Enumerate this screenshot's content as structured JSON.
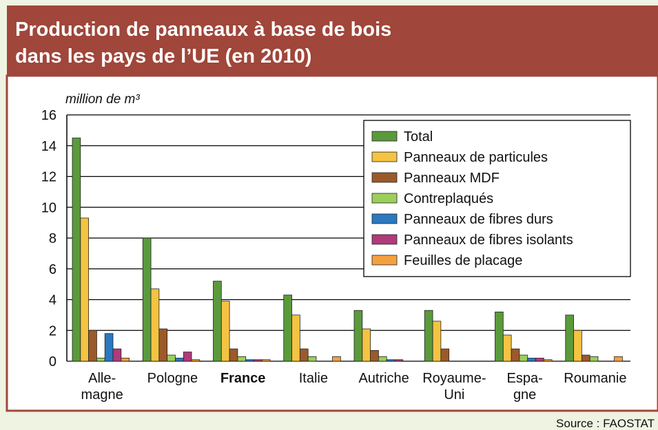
{
  "chart_data": {
    "type": "bar",
    "title": [
      "Production de panneaux à base de bois",
      "dans les pays de l’UE (en 2010)"
    ],
    "y_label": "million de m³",
    "source": "Source  : FAOSTAT",
    "categories": [
      "Alle-\nmagne",
      "Pologne",
      "France",
      "Italie",
      "Autriche",
      "Royaume-\nUni",
      "Espa-\ngne",
      "Roumanie"
    ],
    "highlight_index": 2,
    "series": [
      {
        "name": "Total",
        "color": "#5a9a3c",
        "values": [
          14.5,
          8.0,
          5.2,
          4.3,
          3.3,
          3.3,
          3.2,
          3.0
        ]
      },
      {
        "name": "Panneaux de particules",
        "color": "#f5c342",
        "values": [
          9.3,
          4.7,
          3.9,
          3.0,
          2.1,
          2.6,
          1.7,
          2.0
        ]
      },
      {
        "name": "Panneaux MDF",
        "color": "#9b5a2a",
        "values": [
          2.0,
          2.1,
          0.8,
          0.8,
          0.7,
          0.8,
          0.8,
          0.4
        ]
      },
      {
        "name": "Contreplaqués",
        "color": "#9bcf5a",
        "values": [
          0.2,
          0.4,
          0.3,
          0.3,
          0.3,
          0,
          0.4,
          0.3
        ]
      },
      {
        "name": "Panneaux de fibres durs",
        "color": "#2a78c0",
        "values": [
          1.8,
          0.2,
          0.1,
          0,
          0.1,
          0,
          0.2,
          0
        ]
      },
      {
        "name": "Panneaux de fibres isolants",
        "color": "#b03a7a",
        "values": [
          0.8,
          0.6,
          0.1,
          0,
          0.1,
          0,
          0.2,
          0
        ]
      },
      {
        "name": "Feuilles de placage",
        "color": "#f5a040",
        "values": [
          0.2,
          0.1,
          0.1,
          0.3,
          0,
          0,
          0.1,
          0.3
        ]
      }
    ],
    "ylim": [
      0,
      16
    ],
    "yticks": [
      0,
      2,
      4,
      6,
      8,
      10,
      12,
      14,
      16
    ],
    "grid": true,
    "legend": "upper right"
  }
}
